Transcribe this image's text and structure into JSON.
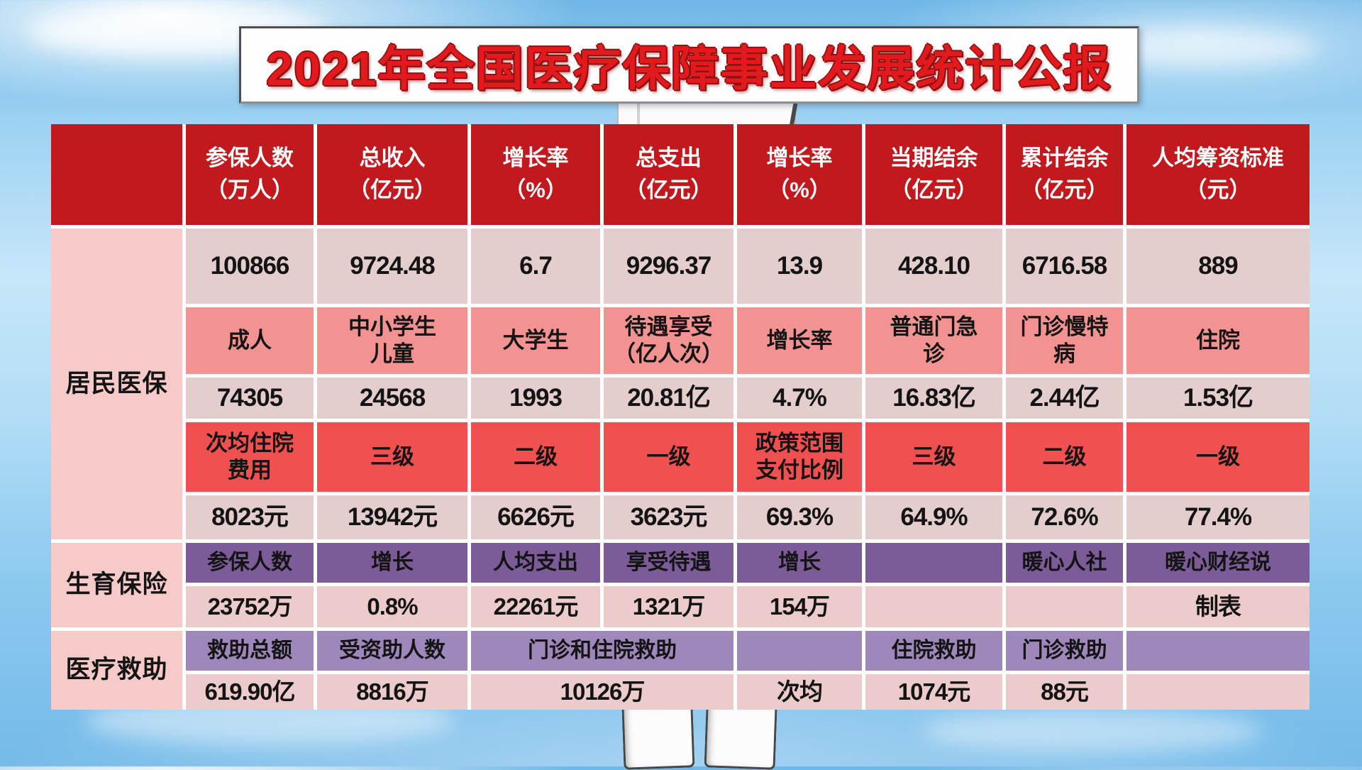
{
  "colors": {
    "header_red": "#c2191f",
    "salmon": "#f29392",
    "bright_red": "#f15051",
    "purple_dark": "#7b5c98",
    "purple_light": "#9e88bb",
    "cell_pink": "#e3cdcd",
    "cell_pink2": "#ecccca",
    "label_pink": "#f7caca",
    "title_red": "#e2191d",
    "sky_blue": "#84c5ee"
  },
  "chart_data": {
    "type": "table",
    "title": "2021年全国医疗保障事业发展统计公报",
    "grid": "white gridlines, red/pink/purple color-banded rows, sky-blue page background",
    "sections": [
      {
        "label": "",
        "rows": [
          {
            "type": "header",
            "cells": [
              "参保人数\n（万人）",
              "总收入\n（亿元）",
              "增长率\n（%）",
              "总支出\n（亿元）",
              "增长率\n（%）",
              "当期结余\n（亿元）",
              "累计结余\n（亿元）",
              "人均筹资标准\n（元）"
            ]
          }
        ]
      },
      {
        "label": "居民医保",
        "rows": [
          {
            "type": "val",
            "cells": [
              "100866",
              "9724.48",
              "6.7",
              "9296.37",
              "13.9",
              "428.10",
              "6716.58",
              "889"
            ]
          },
          {
            "type": "sub",
            "cells": [
              "成人",
              "中小学生\n儿童",
              "大学生",
              "待遇享受\n（亿人次）",
              "增长率",
              "普通门急\n诊",
              "门诊慢特\n病",
              "住院"
            ]
          },
          {
            "type": "val",
            "cells": [
              "74305",
              "24568",
              "1993",
              "20.81亿",
              "4.7%",
              "16.83亿",
              "2.44亿",
              "1.53亿"
            ]
          },
          {
            "type": "red",
            "cells": [
              "次均住院\n费用",
              "三级",
              "二级",
              "一级",
              "政策范围\n支付比例",
              "三级",
              "二级",
              "一级"
            ]
          },
          {
            "type": "val",
            "cells": [
              "8023元",
              "13942元",
              "6626元",
              "3623元",
              "69.3%",
              "64.9%",
              "72.6%",
              "77.4%"
            ]
          }
        ]
      },
      {
        "label": "生育保险",
        "rows": [
          {
            "type": "purple",
            "cells": [
              "参保人数",
              "增长",
              "人均支出",
              "享受待遇",
              "增长",
              "",
              "暖心人社",
              "暖心财经说"
            ]
          },
          {
            "type": "val2",
            "cells": [
              "23752万",
              "0.8%",
              "22261元",
              "1321万",
              "154万",
              "",
              "",
              "制表"
            ]
          }
        ]
      },
      {
        "label": "医疗救助",
        "rows": [
          {
            "type": "purpleL",
            "cells": [
              "救助总额",
              "受资助人数",
              {
                "t": "门诊和住院救助",
                "span": 2
              },
              "",
              "住院救助",
              "门诊救助",
              ""
            ]
          },
          {
            "type": "val2",
            "cells": [
              "619.90亿",
              "8816万",
              {
                "t": "10126万",
                "span": 2
              },
              "次均",
              "1074元",
              "88元",
              ""
            ]
          }
        ]
      }
    ]
  }
}
